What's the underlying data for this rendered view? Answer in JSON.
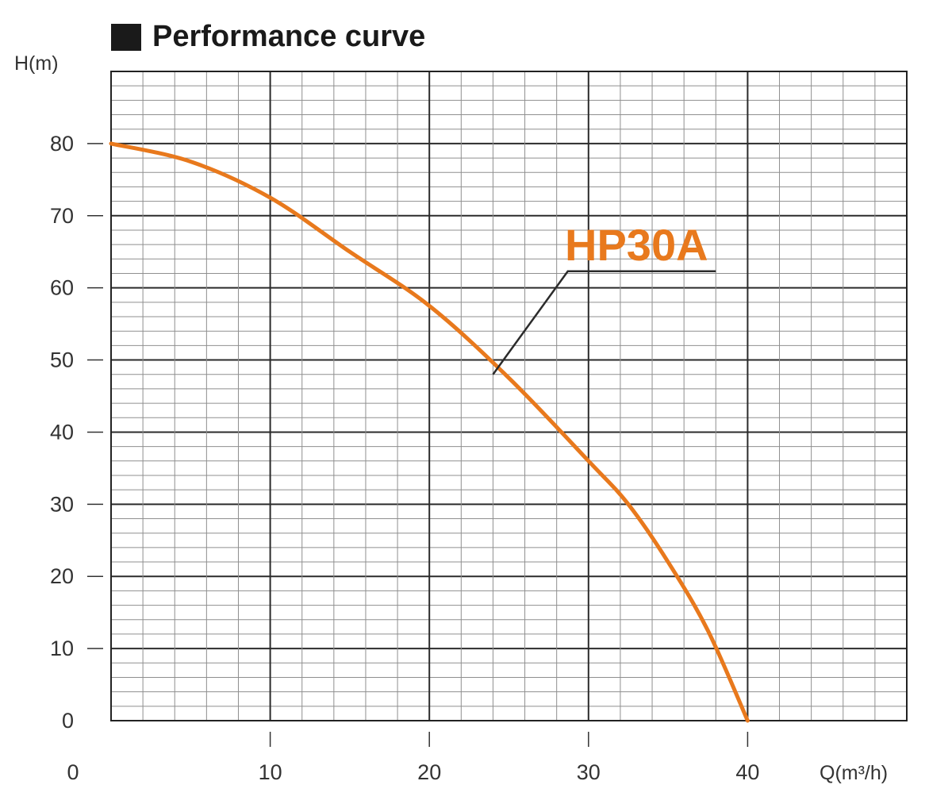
{
  "chart_data": {
    "type": "line",
    "title": "Performance curve",
    "ylabel": "H(m)",
    "xlabel": "Q(m³/h)",
    "xlim": [
      0,
      50
    ],
    "ylim": [
      0,
      90
    ],
    "x_ticks": [
      "0",
      "10",
      "20",
      "30",
      "40"
    ],
    "y_ticks": [
      "0",
      "10",
      "20",
      "30",
      "40",
      "50",
      "60",
      "70",
      "80"
    ],
    "grid": true,
    "series": [
      {
        "name": "HP30A",
        "color": "#e8791d",
        "x": [
          0,
          5,
          10,
          15,
          20,
          25,
          30,
          32.5,
          35,
          37.5,
          40
        ],
        "y": [
          80,
          77.5,
          72.5,
          65,
          57.5,
          47.5,
          36,
          30,
          22,
          12.5,
          0
        ]
      }
    ]
  }
}
